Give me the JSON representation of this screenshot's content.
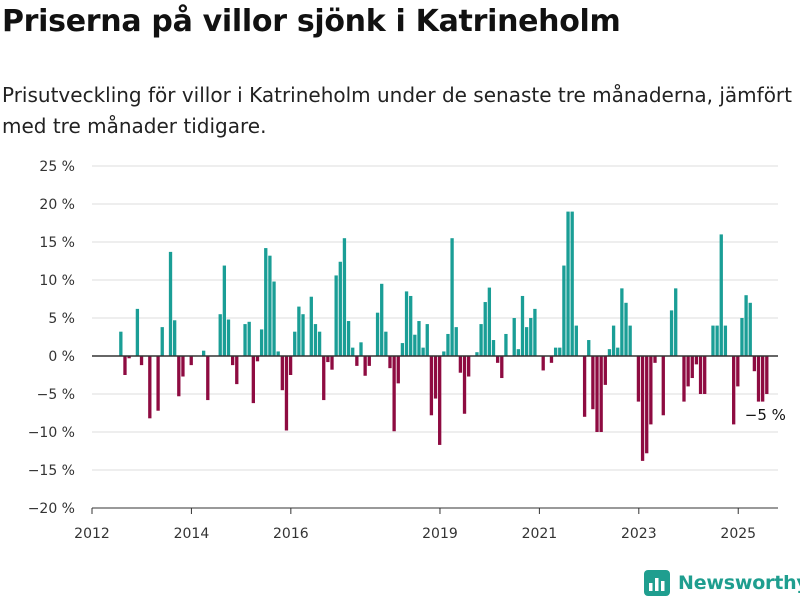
{
  "title": "Priserna på villor sjönk i Katrineholm",
  "subtitle": "Prisutveckling för villor i Katrineholm under de senaste tre månaderna, jämfört med tre månader tidigare.",
  "brand": {
    "name": "Newsworthy",
    "icon": "bar-chart-logo-icon"
  },
  "colors": {
    "positive": "#1a9e96",
    "negative": "#8e0b41",
    "zero_line": "#333333",
    "grid": "#dddddd"
  },
  "chart_data": {
    "type": "bar",
    "ylim": [
      -20,
      25
    ],
    "ytick_values": [
      25,
      20,
      15,
      10,
      5,
      0,
      -5,
      -10,
      -15,
      -20
    ],
    "ytick_labels": [
      "25 %",
      "20 %",
      "15 %",
      "10 %",
      "5 %",
      "0 %",
      "−5 %",
      "−10 %",
      "−15 %",
      "−20 %"
    ],
    "xlim": [
      2012.0,
      2025.8
    ],
    "xtick_values": [
      2012,
      2014,
      2016,
      2019,
      2021,
      2023,
      2025
    ],
    "xtick_labels": [
      "2012",
      "2014",
      "2016",
      "2019",
      "2021",
      "2023",
      "2025"
    ],
    "annotation": "−5 %",
    "x_start": 2012.58,
    "x_step": 0.0833,
    "values": [
      3.2,
      -2.5,
      -0.3,
      0,
      6.2,
      -1.2,
      0,
      -8.2,
      0,
      -7.2,
      3.8,
      0,
      13.7,
      4.7,
      -5.3,
      -2.7,
      0,
      -1.2,
      0,
      0,
      0.7,
      -5.8,
      0,
      0,
      5.5,
      11.9,
      4.8,
      -1.2,
      -3.7,
      0,
      4.2,
      4.5,
      -6.2,
      -0.7,
      3.5,
      14.2,
      13.2,
      9.8,
      0.6,
      -4.5,
      -9.8,
      -2.5,
      3.2,
      6.5,
      5.5,
      0,
      7.8,
      4.2,
      3.2,
      -5.8,
      -0.8,
      -1.8,
      10.6,
      12.4,
      15.5,
      4.6,
      1.1,
      -1.3,
      1.8,
      -2.6,
      -1.3,
      0,
      5.7,
      9.5,
      3.2,
      -1.6,
      -9.9,
      -3.6,
      1.7,
      8.5,
      7.9,
      2.8,
      4.6,
      1.1,
      4.2,
      -7.8,
      -5.6,
      -11.7,
      0.6,
      2.9,
      15.5,
      3.8,
      -2.2,
      -7.6,
      -2.7,
      0,
      0.5,
      4.2,
      7.1,
      9.0,
      2.1,
      -0.9,
      -2.9,
      2.9,
      0,
      5.0,
      0.9,
      7.9,
      3.8,
      5.0,
      6.2,
      0,
      -1.9,
      0,
      -0.9,
      1.1,
      1.1,
      11.9,
      19.0,
      19.0,
      4.0,
      0,
      -8.0,
      2.1,
      -7.0,
      -10.0,
      -10.0,
      -3.8,
      0.9,
      4.0,
      1.1,
      8.9,
      7.0,
      4.0,
      0,
      -6.0,
      -13.8,
      -12.8,
      -9.0,
      -0.9,
      0,
      -7.8,
      0,
      6.0,
      8.9,
      0,
      -6.0,
      -4.0,
      -2.9,
      -1.1,
      -5.0,
      -5.0,
      0,
      4.0,
      4.0,
      16.0,
      4.0,
      0,
      -9.0,
      -4.0,
      5.0,
      8.0,
      7.0,
      -2.0,
      -6.0,
      -6.0,
      -5.0
    ]
  }
}
